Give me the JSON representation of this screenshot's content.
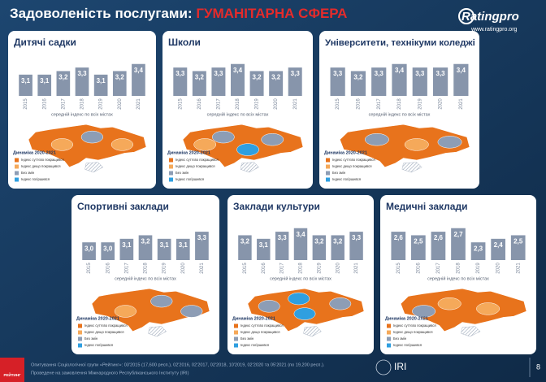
{
  "header": {
    "title": "Задоволеність послугами:",
    "highlight": "ГУМАНІТАРНА СФЕРА",
    "logo": "Ratingpro",
    "url": "www.ratingpro.org"
  },
  "chart_data": [
    {
      "type": "bar",
      "title": "Дитячі садки",
      "categories": [
        "2015",
        "2016",
        "2017",
        "2018",
        "2019",
        "2020",
        "2021"
      ],
      "values": [
        3.1,
        3.1,
        3.2,
        3.3,
        3.1,
        3.2,
        3.4
      ],
      "value_labels": [
        "3,1",
        "3,1",
        "3,2",
        "3,3",
        "3,1",
        "3,2",
        "3,4"
      ],
      "xlabel": "середній індекс по всіх містах",
      "color": "#8795ab",
      "ylim": [
        2.5,
        3.6
      ]
    },
    {
      "type": "bar",
      "title": "Школи",
      "categories": [
        "2015",
        "2016",
        "2017",
        "2018",
        "2019",
        "2020",
        "2021"
      ],
      "values": [
        3.3,
        3.2,
        3.3,
        3.4,
        3.2,
        3.2,
        3.3
      ],
      "value_labels": [
        "3,3",
        "3,2",
        "3,3",
        "3,4",
        "3,2",
        "3,2",
        "3,3"
      ],
      "xlabel": "середній індекс по всіх містах",
      "color": "#8795ab",
      "ylim": [
        2.5,
        3.6
      ]
    },
    {
      "type": "bar",
      "title": "Університети, технікуми коледжі",
      "categories": [
        "2015",
        "2016",
        "2017",
        "2018",
        "2019",
        "2020",
        "2021"
      ],
      "values": [
        3.3,
        3.2,
        3.3,
        3.4,
        3.3,
        3.3,
        3.4
      ],
      "value_labels": [
        "3,3",
        "3,2",
        "3,3",
        "3,4",
        "3,3",
        "3,3",
        "3,4"
      ],
      "xlabel": "середній індекс по всіх містах",
      "color": "#8795ab",
      "ylim": [
        2.5,
        3.6
      ]
    },
    {
      "type": "bar",
      "title": "Спортивні заклади",
      "categories": [
        "2015",
        "2016",
        "2017",
        "2018",
        "2019",
        "2020",
        "2021"
      ],
      "values": [
        3.0,
        3.0,
        3.1,
        3.2,
        3.1,
        3.1,
        3.3
      ],
      "value_labels": [
        "3,0",
        "3,0",
        "3,1",
        "3,2",
        "3,1",
        "3,1",
        "3,3"
      ],
      "xlabel": "середній індекс по всіх містах",
      "color": "#8795ab",
      "ylim": [
        2.5,
        3.6
      ]
    },
    {
      "type": "bar",
      "title": "Заклади культури",
      "categories": [
        "2015",
        "2016",
        "2017",
        "2018",
        "2019",
        "2020",
        "2021"
      ],
      "values": [
        3.2,
        3.1,
        3.3,
        3.4,
        3.2,
        3.2,
        3.3
      ],
      "value_labels": [
        "3,2",
        "3,1",
        "3,3",
        "3,4",
        "3,2",
        "3,2",
        "3,3"
      ],
      "xlabel": "середній індекс по всіх містах",
      "color": "#8795ab",
      "ylim": [
        2.5,
        3.6
      ]
    },
    {
      "type": "bar",
      "title": "Медичні заклади",
      "categories": [
        "2015",
        "2016",
        "2017",
        "2018",
        "2019",
        "2020",
        "2021"
      ],
      "values": [
        2.6,
        2.5,
        2.6,
        2.7,
        2.3,
        2.4,
        2.5
      ],
      "value_labels": [
        "2,6",
        "2,5",
        "2,6",
        "2,7",
        "2,3",
        "2,4",
        "2,5"
      ],
      "xlabel": "середній індекс по всіх містах",
      "color": "#8795ab",
      "ylim": [
        1.8,
        2.9
      ]
    }
  ],
  "map_legend": {
    "title": "Динаміка 2020-2021",
    "items": [
      {
        "label": "Індекс суттєво покращився",
        "color": "#e8731c"
      },
      {
        "label": "Індекс дещо покращився",
        "color": "#f5a95a"
      },
      {
        "label": "Без змін",
        "color": "#8d9db5"
      },
      {
        "label": "Індекс погіршився",
        "color": "#2f9fe0"
      }
    ]
  },
  "footer": {
    "brand": "РЕЙТИНГ",
    "line1": "Опитування Соціологічної групи «Рейтинг»: 03'2015 (17,600 респ.), 02'2016, 02'2017, 02'2018, 10'2019, 02'2020 та 05'2021 (по 19,200 респ.).",
    "line2": "Проведене на замовлення Міжнародного Республіканського Інституту (IRI)",
    "iri": "IRI",
    "page": "8"
  }
}
